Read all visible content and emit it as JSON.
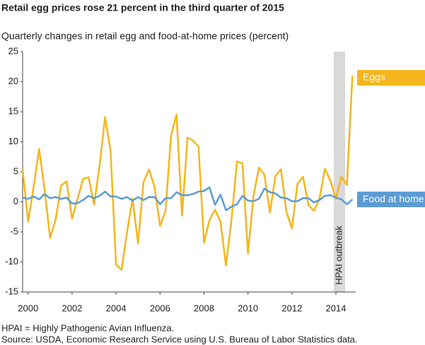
{
  "chart_data": {
    "type": "line",
    "title": "Retail egg prices rose 21 percent in the third quarter of 2015",
    "subtitle": "Quarterly changes in retail egg and food-at-home prices (percent)",
    "notes": [
      "HPAI = Highly Pathogenic Avian Influenza.",
      "Source: USDA, Economic Research Service using U.S. Bureau of Labor Statistics data."
    ],
    "x": [
      1999.75,
      2000,
      2000.25,
      2000.5,
      2000.75,
      2001,
      2001.25,
      2001.5,
      2001.75,
      2002,
      2002.25,
      2002.5,
      2002.75,
      2003,
      2003.25,
      2003.5,
      2003.75,
      2004,
      2004.25,
      2004.5,
      2004.75,
      2005,
      2005.25,
      2005.5,
      2005.75,
      2006,
      2006.25,
      2006.5,
      2006.75,
      2007,
      2007.25,
      2007.5,
      2007.75,
      2008,
      2008.25,
      2008.5,
      2008.75,
      2009,
      2009.25,
      2009.5,
      2009.75,
      2010,
      2010.25,
      2010.5,
      2010.75,
      2011,
      2011.25,
      2011.5,
      2011.75,
      2012,
      2012.25,
      2012.5,
      2012.75,
      2013,
      2013.25,
      2013.5,
      2013.75,
      2014,
      2014.25,
      2014.5,
      2014.75
    ],
    "series": [
      {
        "name": "Eggs",
        "color": "#f5b51c",
        "values": [
          5.5,
          -3.3,
          2.5,
          8.8,
          2.0,
          -6.0,
          -3.0,
          2.7,
          3.4,
          -2.8,
          0.5,
          3.8,
          4.1,
          -0.5,
          6.0,
          14.1,
          8.5,
          -10.5,
          -11.3,
          -5.0,
          0.5,
          -6.9,
          3.3,
          5.4,
          2.5,
          -4.0,
          -1.5,
          11.0,
          14.5,
          -2.3,
          10.7,
          10.2,
          9.2,
          -6.8,
          -3.0,
          -1.3,
          -3.3,
          -10.6,
          -3.0,
          6.7,
          6.4,
          -8.6,
          1.0,
          5.7,
          4.5,
          -1.8,
          4.3,
          5.4,
          -1.7,
          -4.4,
          3.0,
          4.2,
          -0.5,
          -1.5,
          0.5,
          5.5,
          3.5,
          0.5,
          4.2,
          2.8,
          21.0
        ]
      },
      {
        "name": "Food at home",
        "color": "#5b9bd5",
        "values": [
          0.7,
          0.5,
          0.9,
          0.4,
          1.3,
          0.6,
          0.8,
          0.5,
          0.7,
          -0.3,
          -0.2,
          0.3,
          1.0,
          0.6,
          1.0,
          1.7,
          0.9,
          0.9,
          0.5,
          0.8,
          0.2,
          0.8,
          0.3,
          0.8,
          0.8,
          -0.4,
          0.6,
          0.6,
          1.6,
          1.1,
          1.1,
          1.3,
          1.7,
          1.8,
          2.4,
          -0.5,
          1.2,
          -1.4,
          -0.8,
          -0.4,
          1.0,
          0.2,
          0.1,
          0.5,
          2.2,
          1.6,
          1.4,
          0.7,
          0.6,
          0.1,
          0.1,
          0.6,
          0.6,
          -0.1,
          0.3,
          1.0,
          1.1,
          0.7,
          0.4,
          -0.4,
          0.4
        ]
      }
    ],
    "shade": {
      "label": "HPAI outbreak",
      "x": [
        2013.9,
        2014.42
      ]
    },
    "xlim": [
      1999.75,
      2014.9
    ],
    "xticks": [
      2000,
      2002,
      2004,
      2006,
      2008,
      2010,
      2012,
      2014
    ],
    "ylim": [
      -15,
      25
    ],
    "yticks": [
      -15,
      -10,
      -5,
      0,
      5,
      10,
      15,
      20,
      25
    ]
  }
}
